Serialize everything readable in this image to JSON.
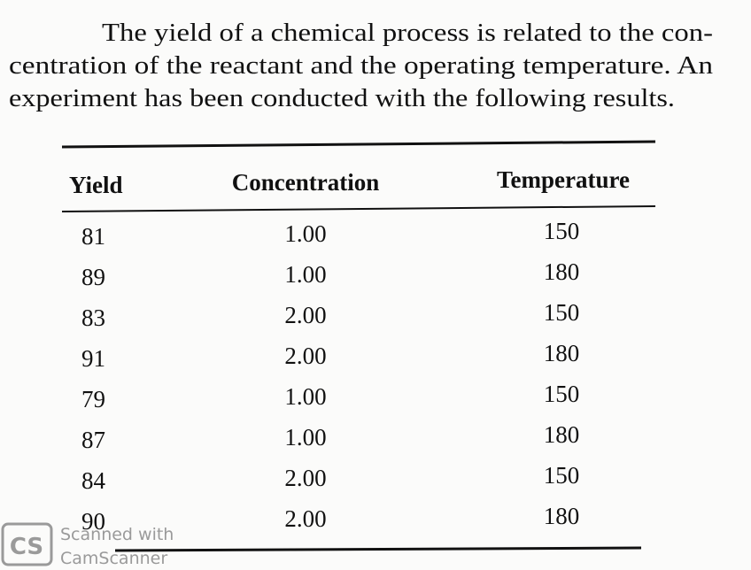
{
  "paragraph": [
    "The yield of a chemical process is related to the con-",
    "centration of the reactant and the operating temperature. An",
    "experiment has been conducted with the following results."
  ],
  "table": {
    "header": [
      "Yield",
      "Concentration",
      "Temperature"
    ],
    "rows": [
      [
        "81",
        "1.00",
        "150"
      ],
      [
        "89",
        "1.00",
        "180"
      ],
      [
        "83",
        "2.00",
        "150"
      ],
      [
        "91",
        "2.00",
        "180"
      ],
      [
        "79",
        "1.00",
        "150"
      ],
      [
        "87",
        "1.00",
        "180"
      ],
      [
        "84",
        "2.00",
        "150"
      ],
      [
        "90",
        "2.00",
        "180"
      ]
    ]
  },
  "watermark": {
    "logo": "CS",
    "line1": "Scanned with",
    "line2": "CamScanner"
  }
}
